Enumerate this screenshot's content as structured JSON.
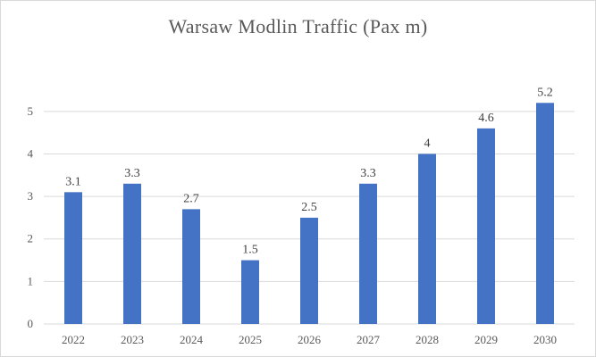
{
  "chart_data": {
    "type": "bar",
    "title": "Warsaw  Modlin Traffic  (Pax m)",
    "categories": [
      "2022",
      "2023",
      "2024",
      "2025",
      "2026",
      "2027",
      "2028",
      "2029",
      "2030"
    ],
    "values": [
      3.1,
      3.3,
      2.7,
      1.5,
      2.5,
      3.3,
      4,
      4.6,
      5.2
    ],
    "data_labels": [
      "3.1",
      "3.3",
      "2.7",
      "1.5",
      "2.5",
      "3.3",
      "4",
      "4.6",
      "5.2"
    ],
    "y_ticks": [
      "0",
      "1",
      "2",
      "3",
      "4",
      "5"
    ],
    "ylim": [
      0,
      5.5
    ],
    "xlabel": "",
    "ylabel": "",
    "grid": true,
    "legend": "none",
    "bar_color": "#4472c4",
    "grid_color": "#d9d9d9"
  }
}
